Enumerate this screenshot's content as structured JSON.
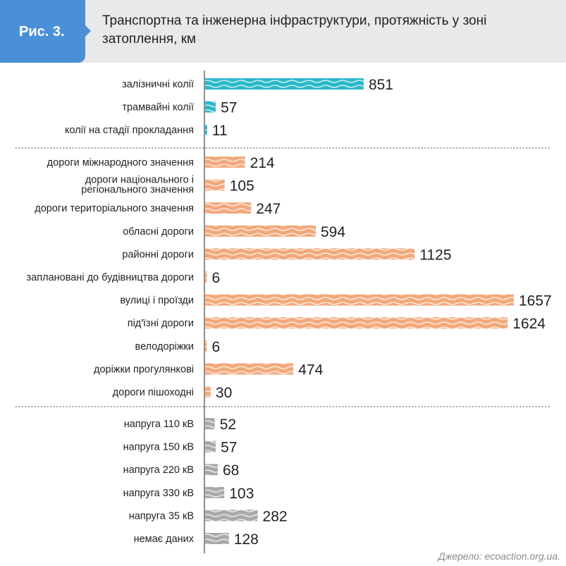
{
  "header": {
    "figure_label": "Рис. 3.",
    "title": "Транспортна та інженерна інфраструктури, протяжність у зоні затоплення, км"
  },
  "source": "Джерело: ecoaction.org.ua.",
  "colors": {
    "badge": "#4a90d9",
    "header_bg": "#e8e9eb",
    "rail": "#2bb8c9",
    "roads": "#f2a97b",
    "power": "#a9a9ab"
  },
  "chart_data": {
    "type": "bar",
    "orientation": "horizontal",
    "xlim": [
      0,
      1657
    ],
    "grid": false,
    "groups": [
      {
        "color": "#2bb8c9",
        "categories": [
          "залізничні колії",
          "трамвайні колії",
          "колії на стадії прокладання"
        ],
        "values": [
          851,
          57,
          11
        ]
      },
      {
        "color": "#f2a97b",
        "categories": [
          "дороги міжнародного значення",
          "дороги національного і регіонального значення",
          "дороги територіального значення",
          "обласні дороги",
          "районні дороги",
          "заплановані до будівництва дороги",
          "вулиці і проїзди",
          "під'їзні дороги",
          "велодоріжки",
          "доріжки прогулянкові",
          "дороги пішоходні"
        ],
        "values": [
          214,
          105,
          247,
          594,
          1125,
          6,
          1657,
          1624,
          6,
          474,
          30
        ]
      },
      {
        "color": "#a9a9ab",
        "categories": [
          "напруга 110 кВ",
          "напруга 150 кВ",
          "напруга 220 кВ",
          "напруга 330 кВ",
          "напруга 35 кВ",
          "немає даних"
        ],
        "values": [
          52,
          57,
          68,
          103,
          282,
          128
        ]
      }
    ]
  }
}
